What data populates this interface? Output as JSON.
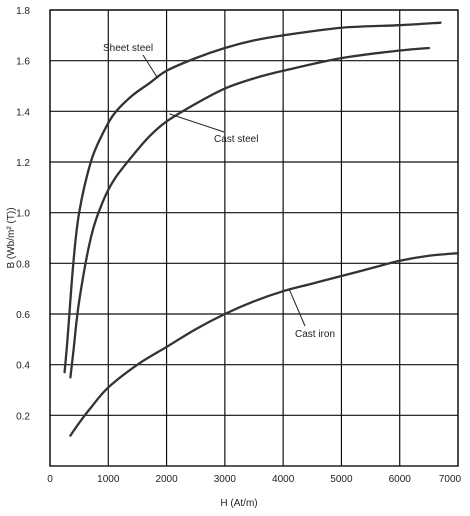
{
  "chart_data": {
    "type": "line",
    "title": "",
    "xlabel": "H (At/m)",
    "ylabel": "B (Wb/m² (T))",
    "xlim": [
      0,
      7000
    ],
    "ylim": [
      0,
      1.8
    ],
    "grid": true,
    "x_ticks": [
      "0",
      "1000",
      "2000",
      "3000",
      "4000",
      "5000",
      "6000",
      "7000"
    ],
    "y_ticks": [
      "0.2",
      "0.4",
      "0.6",
      "0.8",
      "1.0",
      "1.2",
      "1.4",
      "1.6",
      "1.8"
    ],
    "series": [
      {
        "name": "Sheet steel",
        "x": [
          250,
          300,
          400,
          500,
          700,
          900,
          1100,
          1400,
          1700,
          2000,
          2500,
          3000,
          3500,
          4000,
          5000,
          6000,
          6700
        ],
        "y": [
          0.37,
          0.5,
          0.8,
          1.0,
          1.2,
          1.31,
          1.39,
          1.46,
          1.51,
          1.56,
          1.61,
          1.65,
          1.68,
          1.7,
          1.73,
          1.74,
          1.75
        ]
      },
      {
        "name": "Cast steel",
        "x": [
          350,
          400,
          500,
          700,
          900,
          1100,
          1400,
          1700,
          2000,
          2500,
          3000,
          3500,
          4000,
          5000,
          6000,
          6500
        ],
        "y": [
          0.35,
          0.45,
          0.65,
          0.9,
          1.04,
          1.13,
          1.22,
          1.3,
          1.36,
          1.43,
          1.49,
          1.53,
          1.56,
          1.61,
          1.64,
          1.65
        ]
      },
      {
        "name": "Cast iron",
        "x": [
          350,
          500,
          700,
          1000,
          1500,
          2000,
          2500,
          3000,
          3500,
          4000,
          4500,
          5000,
          5500,
          6000,
          6500,
          7000
        ],
        "y": [
          0.12,
          0.17,
          0.23,
          0.31,
          0.4,
          0.47,
          0.54,
          0.6,
          0.65,
          0.69,
          0.72,
          0.75,
          0.78,
          0.81,
          0.83,
          0.84
        ]
      }
    ],
    "annotations": [
      {
        "text": "Sheet steel",
        "series": "Sheet steel",
        "at_x": 1850,
        "at_y": 1.53
      },
      {
        "text": "Cast steel",
        "series": "Cast steel",
        "at_x": 2050,
        "at_y": 1.39
      },
      {
        "text": "Cast iron",
        "series": "Cast iron",
        "at_x": 4100,
        "at_y": 0.7
      }
    ]
  }
}
